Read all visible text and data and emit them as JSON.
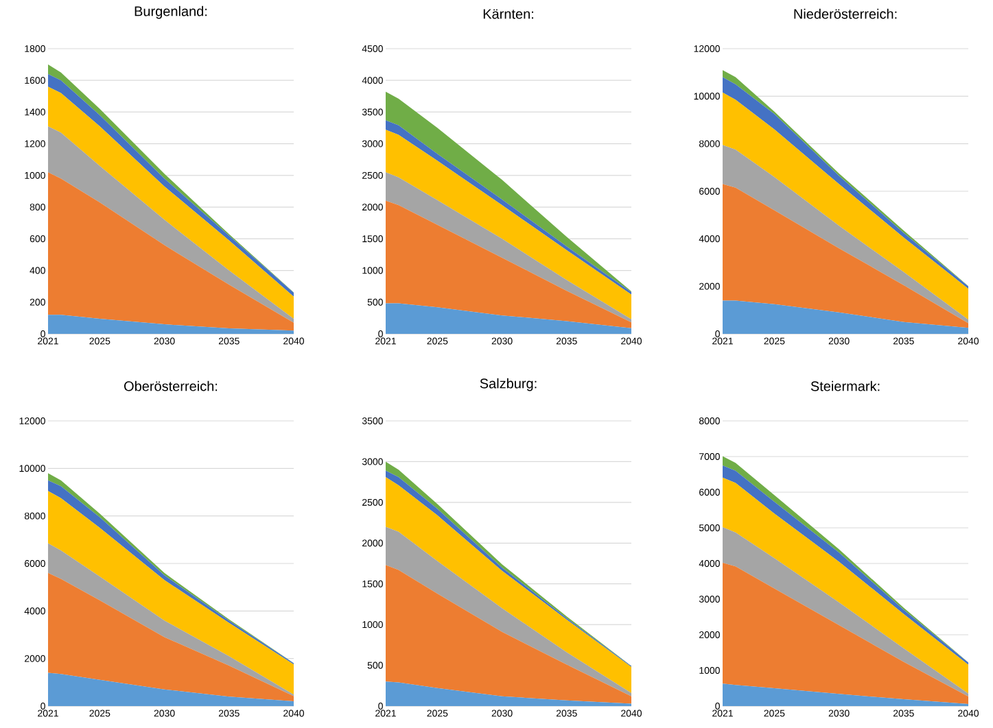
{
  "chart_data": [
    {
      "type": "area",
      "stacked": true,
      "title": "Burgenland:",
      "x": [
        2021,
        2022,
        2025,
        2030,
        2035,
        2040
      ],
      "xlim": [
        2021,
        2040
      ],
      "xticks": [
        2021,
        2025,
        2030,
        2035,
        2040
      ],
      "ylim": [
        0,
        1800
      ],
      "yticks": [
        0,
        200,
        400,
        600,
        800,
        1000,
        1200,
        1400,
        1600,
        1800
      ],
      "grid": "y",
      "series": [
        {
          "color": "#5b9bd5",
          "values": [
            120,
            120,
            95,
            60,
            35,
            20
          ]
        },
        {
          "color": "#ed7d31",
          "values": [
            900,
            860,
            735,
            500,
            275,
            50
          ]
        },
        {
          "color": "#a5a5a5",
          "values": [
            290,
            290,
            230,
            160,
            90,
            25
          ]
        },
        {
          "color": "#ffc000",
          "values": [
            250,
            250,
            250,
            210,
            190,
            140
          ]
        },
        {
          "color": "#4472c4",
          "values": [
            80,
            80,
            70,
            50,
            30,
            25
          ]
        },
        {
          "color": "#70ad47",
          "values": [
            60,
            50,
            40,
            30,
            10,
            2
          ]
        }
      ]
    },
    {
      "type": "area",
      "stacked": true,
      "title": "Kärnten:",
      "x": [
        2021,
        2022,
        2025,
        2030,
        2035,
        2040
      ],
      "xlim": [
        2021,
        2040
      ],
      "xticks": [
        2021,
        2025,
        2030,
        2035,
        2040
      ],
      "ylim": [
        0,
        4500
      ],
      "yticks": [
        0,
        500,
        1000,
        1500,
        2000,
        2500,
        3000,
        3500,
        4000,
        4500
      ],
      "grid": "y",
      "series": [
        {
          "color": "#5b9bd5",
          "values": [
            480,
            480,
            420,
            290,
            200,
            90
          ]
        },
        {
          "color": "#ed7d31",
          "values": [
            1620,
            1550,
            1300,
            910,
            480,
            90
          ]
        },
        {
          "color": "#a5a5a5",
          "values": [
            450,
            440,
            390,
            300,
            170,
            50
          ]
        },
        {
          "color": "#ffc000",
          "values": [
            670,
            670,
            620,
            530,
            470,
            390
          ]
        },
        {
          "color": "#4472c4",
          "values": [
            150,
            150,
            110,
            90,
            60,
            40
          ]
        },
        {
          "color": "#70ad47",
          "values": [
            450,
            420,
            410,
            310,
            150,
            10
          ]
        }
      ]
    },
    {
      "type": "area",
      "stacked": true,
      "title": "Niederösterreich:",
      "x": [
        2021,
        2022,
        2025,
        2030,
        2035,
        2040
      ],
      "xlim": [
        2021,
        2040
      ],
      "xticks": [
        2021,
        2025,
        2030,
        2035,
        2040
      ],
      "ylim": [
        0,
        12000
      ],
      "yticks": [
        0,
        2000,
        4000,
        6000,
        8000,
        10000,
        12000
      ],
      "grid": "y",
      "series": [
        {
          "color": "#5b9bd5",
          "values": [
            1400,
            1400,
            1250,
            900,
            500,
            250
          ]
        },
        {
          "color": "#ed7d31",
          "values": [
            4900,
            4750,
            3950,
            2700,
            1550,
            200
          ]
        },
        {
          "color": "#a5a5a5",
          "values": [
            1650,
            1600,
            1400,
            950,
            550,
            150
          ]
        },
        {
          "color": "#ffc000",
          "values": [
            2200,
            2100,
            2000,
            1750,
            1450,
            1300
          ]
        },
        {
          "color": "#4472c4",
          "values": [
            650,
            650,
            650,
            350,
            200,
            100
          ]
        },
        {
          "color": "#70ad47",
          "values": [
            300,
            300,
            100,
            100,
            100,
            10
          ]
        }
      ]
    },
    {
      "type": "area",
      "stacked": true,
      "title": "Oberösterreich:",
      "x": [
        2021,
        2022,
        2025,
        2030,
        2035,
        2040
      ],
      "xlim": [
        2021,
        2040
      ],
      "xticks": [
        2021,
        2025,
        2030,
        2035,
        2040
      ],
      "ylim": [
        0,
        12000
      ],
      "yticks": [
        0,
        2000,
        4000,
        6000,
        8000,
        10000,
        12000
      ],
      "grid": "y",
      "series": [
        {
          "color": "#5b9bd5",
          "values": [
            1400,
            1350,
            1100,
            700,
            400,
            200
          ]
        },
        {
          "color": "#ed7d31",
          "values": [
            4200,
            4000,
            3350,
            2200,
            1300,
            220
          ]
        },
        {
          "color": "#a5a5a5",
          "values": [
            1250,
            1200,
            1000,
            700,
            400,
            60
          ]
        },
        {
          "color": "#ffc000",
          "values": [
            2200,
            2200,
            2050,
            1700,
            1400,
            1270
          ]
        },
        {
          "color": "#4472c4",
          "values": [
            450,
            500,
            450,
            200,
            100,
            50
          ]
        },
        {
          "color": "#70ad47",
          "values": [
            300,
            250,
            150,
            100,
            50,
            10
          ]
        }
      ]
    },
    {
      "type": "area",
      "stacked": true,
      "title": "Salzburg:",
      "x": [
        2021,
        2022,
        2025,
        2030,
        2035,
        2040
      ],
      "xlim": [
        2021,
        2040
      ],
      "xticks": [
        2021,
        2025,
        2030,
        2035,
        2040
      ],
      "ylim": [
        0,
        3500
      ],
      "yticks": [
        0,
        500,
        1000,
        1500,
        2000,
        2500,
        3000,
        3500
      ],
      "grid": "y",
      "series": [
        {
          "color": "#5b9bd5",
          "values": [
            300,
            290,
            220,
            120,
            70,
            30
          ]
        },
        {
          "color": "#ed7d31",
          "values": [
            1430,
            1380,
            1160,
            790,
            440,
            90
          ]
        },
        {
          "color": "#a5a5a5",
          "values": [
            470,
            470,
            400,
            290,
            150,
            40
          ]
        },
        {
          "color": "#ffc000",
          "values": [
            610,
            570,
            560,
            460,
            400,
            320
          ]
        },
        {
          "color": "#4472c4",
          "values": [
            80,
            100,
            80,
            40,
            20,
            10
          ]
        },
        {
          "color": "#70ad47",
          "values": [
            110,
            90,
            60,
            40,
            20,
            2
          ]
        }
      ]
    },
    {
      "type": "area",
      "stacked": true,
      "title": "Steiermark:",
      "x": [
        2021,
        2022,
        2025,
        2030,
        2035,
        2040
      ],
      "xlim": [
        2021,
        2040
      ],
      "xticks": [
        2021,
        2025,
        2030,
        2035,
        2040
      ],
      "ylim": [
        0,
        8000
      ],
      "yticks": [
        0,
        1000,
        2000,
        3000,
        4000,
        5000,
        6000,
        7000,
        8000
      ],
      "grid": "y",
      "series": [
        {
          "color": "#5b9bd5",
          "values": [
            630,
            590,
            500,
            340,
            190,
            60
          ]
        },
        {
          "color": "#ed7d31",
          "values": [
            3390,
            3330,
            2800,
            1930,
            1050,
            210
          ]
        },
        {
          "color": "#a5a5a5",
          "values": [
            1000,
            950,
            850,
            640,
            380,
            80
          ]
        },
        {
          "color": "#ffc000",
          "values": [
            1390,
            1390,
            1250,
            1140,
            960,
            810
          ]
        },
        {
          "color": "#4472c4",
          "values": [
            340,
            340,
            330,
            260,
            120,
            60
          ]
        },
        {
          "color": "#70ad47",
          "values": [
            260,
            220,
            190,
            90,
            60,
            5
          ]
        }
      ]
    }
  ]
}
